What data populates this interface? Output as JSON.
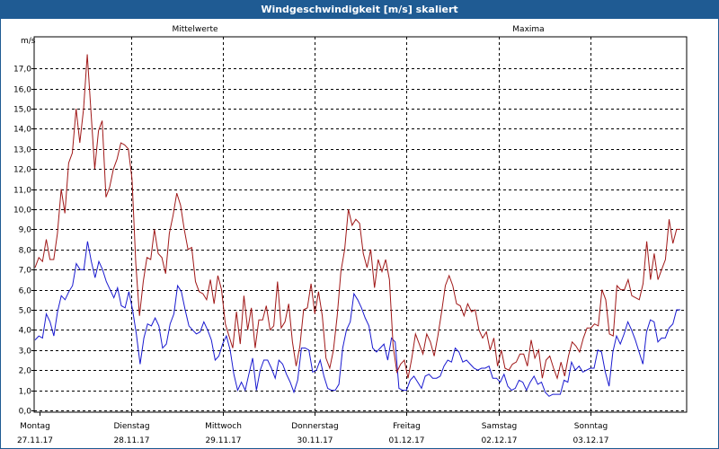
{
  "window": {
    "title": "Windgeschwindigkeit [m/s] skaliert"
  },
  "colors": {
    "mittel": "#1a1ad0",
    "maxima": "#a01818",
    "grid": "#000000"
  },
  "chart_data": {
    "type": "line",
    "title": "Windgeschwindigkeit [m/s] skaliert",
    "ylabel": "m/s",
    "xlabel": "",
    "ylim": [
      0,
      18
    ],
    "yticks": [
      "0,0",
      "1,0",
      "2,0",
      "3,0",
      "4,0",
      "5,0",
      "6,0",
      "7,0",
      "8,0",
      "9,0",
      "10,0",
      "11,0",
      "12,0",
      "13,0",
      "14,0",
      "15,0",
      "16,0",
      "17,0"
    ],
    "ytick_values": [
      0,
      1,
      2,
      3,
      4,
      5,
      6,
      7,
      8,
      9,
      10,
      11,
      12,
      13,
      14,
      15,
      16,
      17
    ],
    "grid": true,
    "legend_placement": "top",
    "x_unit": "days",
    "xlim": [
      0,
      7
    ],
    "xticks": [
      {
        "day": "Montag",
        "date": "27.11.17",
        "x": 0
      },
      {
        "day": "Dienstag",
        "date": "28.11.17",
        "x": 1
      },
      {
        "day": "Mittwoch",
        "date": "29.11.17",
        "x": 2
      },
      {
        "day": "Donnerstag",
        "date": "30.11.17",
        "x": 3
      },
      {
        "day": "Freitag",
        "date": "01.12.17",
        "x": 4
      },
      {
        "day": "Samstag",
        "date": "02.12.17",
        "x": 5
      },
      {
        "day": "Sonntag",
        "date": "03.12.17",
        "x": 6
      }
    ],
    "series": [
      {
        "name": "Mittelwerte",
        "values": [
          3.5,
          3.7,
          3.6,
          4.8,
          4.4,
          3.7,
          4.9,
          5.7,
          5.5,
          5.9,
          6.2,
          7.3,
          7.0,
          7.0,
          8.4,
          7.4,
          6.6,
          7.4,
          7.0,
          6.4,
          6.0,
          5.6,
          6.1,
          5.2,
          5.1,
          5.9,
          5.0,
          3.8,
          2.3,
          3.6,
          4.3,
          4.2,
          4.6,
          4.2,
          3.1,
          3.3,
          4.3,
          4.8,
          6.2,
          5.9,
          5.0,
          4.2,
          4.0,
          3.8,
          3.9,
          4.4,
          4.0,
          3.5,
          2.5,
          2.7,
          3.3,
          3.7,
          3.0,
          1.8,
          1.0,
          1.4,
          1.0,
          1.8,
          2.6,
          1.0,
          2.0,
          2.5,
          2.5,
          2.1,
          1.6,
          2.5,
          2.3,
          1.8,
          1.4,
          0.9,
          1.5,
          3.1,
          3.1,
          3.0,
          1.9,
          2.0,
          2.5,
          1.7,
          1.1,
          1.0,
          1.0,
          1.3,
          3.1,
          4.0,
          4.4,
          5.8,
          5.5,
          5.1,
          4.6,
          4.2,
          3.1,
          2.9,
          3.1,
          3.3,
          2.5,
          3.6,
          3.4,
          1.1,
          1.0,
          1.0,
          1.5,
          1.7,
          1.4,
          1.1,
          1.7,
          1.8,
          1.6,
          1.6,
          1.7,
          2.2,
          2.5,
          2.4,
          3.1,
          2.9,
          2.4,
          2.5,
          2.3,
          2.1,
          2.0,
          2.1,
          2.1,
          2.2,
          1.6,
          1.6,
          1.4,
          1.8,
          1.2,
          1.0,
          1.1,
          1.5,
          1.4,
          1.0,
          1.4,
          1.7,
          1.3,
          1.4,
          0.9,
          0.7,
          0.8,
          0.8,
          0.8,
          1.5,
          1.4,
          2.4,
          2.0,
          2.2,
          1.9,
          2.0,
          2.1,
          2.1,
          3.0,
          2.9,
          1.9,
          1.2,
          2.9,
          3.7,
          3.3,
          3.8,
          4.4,
          4.0,
          3.5,
          2.9,
          2.3,
          3.9,
          4.5,
          4.4,
          3.4,
          3.6,
          3.6,
          4.1,
          4.3,
          5.0,
          5.0
        ]
      },
      {
        "name": "Maxima",
        "values": [
          7.1,
          7.6,
          7.4,
          8.5,
          7.5,
          7.5,
          8.8,
          11.0,
          9.8,
          12.3,
          12.8,
          15.0,
          13.3,
          15.0,
          17.7,
          14.8,
          12.0,
          13.9,
          14.4,
          10.6,
          11.1,
          12.0,
          12.5,
          13.3,
          13.2,
          13.0,
          11.5,
          7.3,
          4.7,
          6.4,
          7.6,
          7.5,
          9.0,
          7.8,
          7.6,
          6.8,
          8.8,
          9.7,
          10.8,
          10.2,
          9.0,
          8.0,
          8.1,
          6.4,
          5.9,
          5.8,
          5.5,
          6.5,
          5.3,
          6.7,
          6.0,
          4.3,
          3.7,
          3.1,
          4.9,
          3.3,
          5.7,
          4.0,
          5.1,
          3.1,
          4.5,
          4.5,
          5.2,
          4.0,
          4.2,
          6.4,
          4.1,
          4.4,
          5.3,
          3.4,
          2.2,
          3.2,
          5.0,
          5.1,
          6.3,
          4.8,
          5.9,
          4.7,
          2.6,
          2.1,
          3.0,
          4.7,
          6.9,
          8.0,
          10.0,
          9.2,
          9.5,
          9.3,
          7.8,
          7.1,
          8.0,
          6.1,
          7.5,
          6.9,
          7.5,
          6.5,
          3.2,
          1.9,
          2.3,
          2.5,
          1.6,
          2.6,
          3.8,
          3.3,
          2.8,
          3.8,
          3.4,
          2.7,
          3.7,
          4.9,
          6.2,
          6.7,
          6.2,
          5.3,
          5.2,
          4.7,
          5.3,
          4.9,
          5.0,
          4.0,
          3.6,
          3.9,
          3.0,
          3.6,
          2.2,
          3.0,
          2.1,
          2.0,
          2.3,
          2.4,
          2.8,
          2.8,
          2.2,
          3.5,
          2.6,
          3.0,
          1.6,
          2.5,
          2.7,
          2.1,
          1.6,
          2.4,
          1.7,
          2.7,
          3.4,
          3.2,
          2.9,
          3.6,
          4.1,
          4.1,
          4.3,
          4.2,
          6.0,
          5.5,
          3.8,
          3.7,
          6.2,
          6.0,
          6.0,
          6.5,
          5.7,
          5.6,
          5.5,
          6.3,
          8.4,
          6.5,
          7.8,
          6.5,
          7.0,
          7.5,
          9.5,
          8.3,
          9.0,
          9.0
        ]
      }
    ]
  }
}
